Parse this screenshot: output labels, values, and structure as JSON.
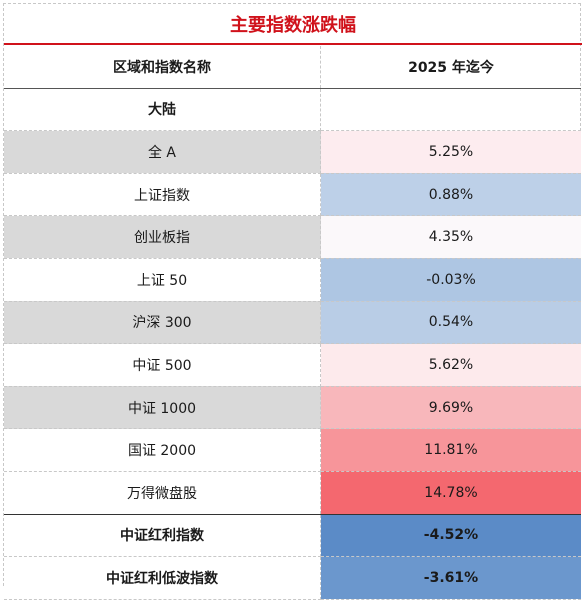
{
  "title": "主要指数涨跌幅",
  "columns": {
    "name": "区域和指数名称",
    "ytd": "2025 年迄今"
  },
  "section": "大陆",
  "rows": [
    {
      "name": "全 A",
      "value": "5.25%",
      "name_bg": "#d9d9d9",
      "value_bg": "#fdecef"
    },
    {
      "name": "上证指数",
      "value": "0.88%",
      "name_bg": "#ffffff",
      "value_bg": "#bdd0e8"
    },
    {
      "name": "创业板指",
      "value": "4.35%",
      "name_bg": "#d9d9d9",
      "value_bg": "#fbf8fa"
    },
    {
      "name": "上证 50",
      "value": "-0.03%",
      "name_bg": "#ffffff",
      "value_bg": "#aec6e3"
    },
    {
      "name": "沪深 300",
      "value": "0.54%",
      "name_bg": "#d9d9d9",
      "value_bg": "#b9cde6"
    },
    {
      "name": "中证 500",
      "value": "5.62%",
      "name_bg": "#ffffff",
      "value_bg": "#fdeaec"
    },
    {
      "name": "中证 1000",
      "value": "9.69%",
      "name_bg": "#d9d9d9",
      "value_bg": "#f8b7bb"
    },
    {
      "name": "国证 2000",
      "value": "11.81%",
      "name_bg": "#ffffff",
      "value_bg": "#f7959a"
    },
    {
      "name": "万得微盘股",
      "value": "14.78%",
      "name_bg": "#ffffff",
      "value_bg": "#f4686f"
    },
    {
      "name": "中证红利指数",
      "value": "-4.52%",
      "name_bg": "#ffffff",
      "value_bg": "#5b8bc7",
      "bold": true,
      "thick_top": true
    },
    {
      "name": "中证红利低波指数",
      "value": "-3.61%",
      "name_bg": "#ffffff",
      "value_bg": "#6b97cd",
      "bold": true
    }
  ]
}
